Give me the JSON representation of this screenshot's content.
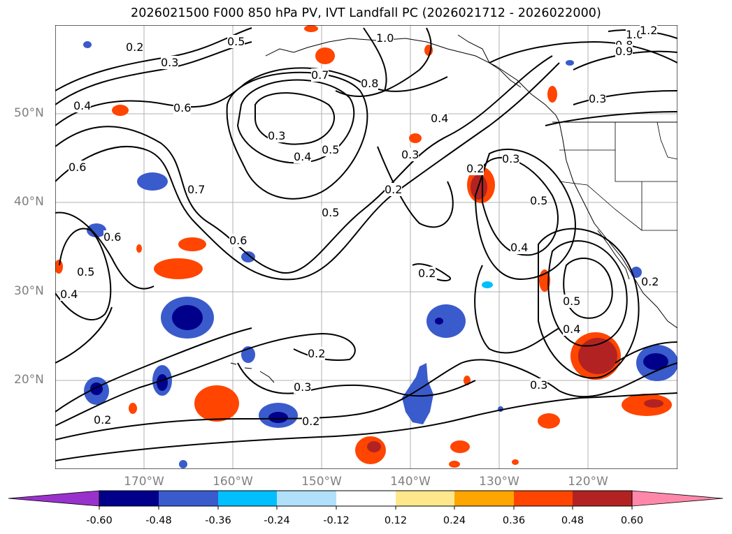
{
  "title": "2026021500 F000 850 hPa PV, IVT Landfall PC (2026021712 - 2026022000)",
  "lat_ticks": [
    "50°N",
    "40°N",
    "30°N",
    "20°N"
  ],
  "lon_ticks": [
    "170°W",
    "160°W",
    "150°W",
    "140°W",
    "130°W",
    "120°W"
  ],
  "colorbar": {
    "labels": [
      "-0.60",
      "-0.48",
      "-0.36",
      "-0.24",
      "-0.12",
      "0.12",
      "0.24",
      "0.36",
      "0.48",
      "0.60"
    ],
    "colors": [
      "#9932cc",
      "#00008b",
      "#3a5bcc",
      "#00bfff",
      "#b0e0fa",
      "#ffffff",
      "#ffe88c",
      "#ffa500",
      "#ff4500",
      "#b22222",
      "#ff88aa"
    ]
  },
  "contour_labels": [
    "0.2",
    "0.3",
    "0.4",
    "0.5",
    "0.6",
    "0.7",
    "0.8",
    "1.0",
    "1.2",
    "0.9"
  ]
}
